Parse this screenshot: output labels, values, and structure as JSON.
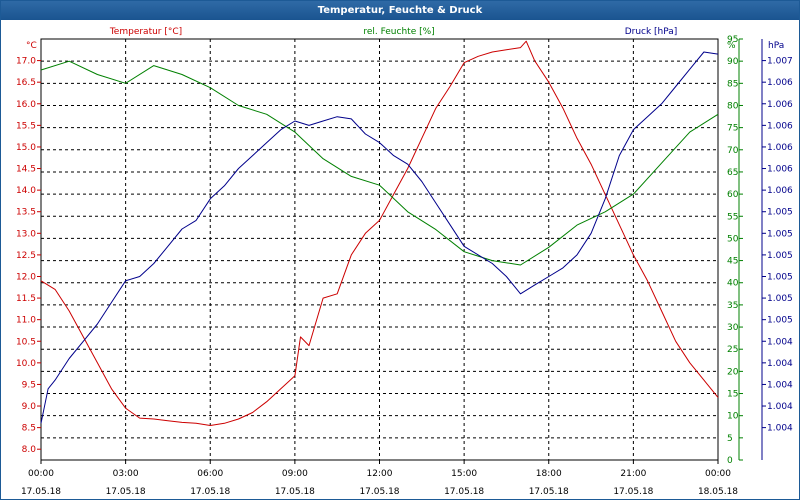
{
  "window": {
    "title": "Temperatur, Feuchte & Druck"
  },
  "chart_data": {
    "type": "line",
    "title": "Temperatur, Feuchte & Druck",
    "grid": true,
    "x_ticks": [
      {
        "time": "00:00",
        "date": "17.05.18"
      },
      {
        "time": "03:00",
        "date": "17.05.18"
      },
      {
        "time": "06:00",
        "date": "17.05.18"
      },
      {
        "time": "09:00",
        "date": "17.05.18"
      },
      {
        "time": "12:00",
        "date": "17.05.18"
      },
      {
        "time": "15:00",
        "date": "17.05.18"
      },
      {
        "time": "18:00",
        "date": "17.05.18"
      },
      {
        "time": "21:00",
        "date": "17.05.18"
      },
      {
        "time": "00:00",
        "date": "18.05.18"
      }
    ],
    "axes": {
      "temperature": {
        "unit_label": "°C",
        "color": "#cc0000",
        "ylim": [
          7.75,
          17.5
        ],
        "ticks": [
          "8.0",
          "8.5",
          "9.0",
          "9.5",
          "10.0",
          "10.5",
          "11.0",
          "11.5",
          "12.0",
          "12.5",
          "13.0",
          "13.5",
          "14.0",
          "14.5",
          "15.0",
          "15.5",
          "16.0",
          "16.5",
          "17.0"
        ]
      },
      "humidity": {
        "unit_label": "%",
        "color": "#008000",
        "ylim": [
          0,
          95
        ],
        "ticks": [
          "0",
          "5",
          "10",
          "15",
          "20",
          "25",
          "30",
          "35",
          "40",
          "45",
          "50",
          "55",
          "60",
          "65",
          "70",
          "75",
          "80",
          "85",
          "90",
          "95"
        ]
      },
      "pressure": {
        "unit_label": "hPa",
        "color": "#00008b",
        "ylim": [
          1003.6,
          1007.3
        ],
        "tick_positions": [
          8.5,
          9.0,
          9.5,
          10.0,
          10.5,
          11.0,
          11.5,
          12.0,
          12.5,
          13.0,
          13.5,
          14.0,
          14.5,
          15.0,
          15.5,
          16.0,
          16.5,
          17.0
        ],
        "ticks": [
          "1.004",
          "1.004",
          "1.004",
          "1.004",
          "1.004",
          "1.005",
          "1.005",
          "1.005",
          "1.005",
          "1.005",
          "1.005",
          "1.006",
          "1.006",
          "1.006",
          "1.006",
          "1.006",
          "1.006",
          "1.007"
        ]
      }
    },
    "series": [
      {
        "name": "Temperatur [°C]",
        "axis": "temperature",
        "color": "#cc0000",
        "x": [
          0,
          0.5,
          1,
          1.5,
          2,
          2.5,
          3,
          3.5,
          4,
          4.5,
          5,
          5.5,
          6,
          6.5,
          7,
          7.5,
          8,
          8.5,
          9,
          9.2,
          9.5,
          10,
          10.5,
          11,
          11.5,
          12,
          12.5,
          13,
          13.5,
          14,
          14.5,
          15,
          15.5,
          16,
          16.5,
          17,
          17.2,
          17.5,
          18,
          18.5,
          19,
          19.5,
          20,
          20.5,
          21,
          21.5,
          22,
          22.5,
          23,
          23.5,
          24
        ],
        "values": [
          11.9,
          11.7,
          11.2,
          10.6,
          10.0,
          9.4,
          8.95,
          8.72,
          8.7,
          8.66,
          8.62,
          8.6,
          8.55,
          8.6,
          8.7,
          8.85,
          9.1,
          9.4,
          9.7,
          10.6,
          10.4,
          11.5,
          11.6,
          12.5,
          13.0,
          13.3,
          13.9,
          14.5,
          15.2,
          15.9,
          16.4,
          16.95,
          17.1,
          17.2,
          17.25,
          17.3,
          17.45,
          17.0,
          16.5,
          15.9,
          15.2,
          14.6,
          13.9,
          13.2,
          12.5,
          11.9,
          11.2,
          10.5,
          10.0,
          9.6,
          9.2
        ]
      },
      {
        "name": "rel. Feuchte [%]",
        "axis": "humidity",
        "color": "#008000",
        "x": [
          0,
          1,
          2,
          3,
          4,
          5,
          6,
          7,
          8,
          9,
          10,
          11,
          12,
          13,
          14,
          15,
          16,
          17,
          18,
          19,
          20,
          21,
          22,
          23,
          24
        ],
        "values": [
          88,
          90,
          87,
          85,
          89,
          87,
          84,
          80,
          78,
          74,
          68,
          64,
          62,
          56,
          52,
          47,
          45,
          44,
          48,
          53,
          56,
          60,
          67,
          74,
          78
        ]
      },
      {
        "name": "Druck [hPa]",
        "axis": "pressure",
        "color": "#00008b",
        "x": [
          0,
          0.25,
          0.5,
          1,
          1.5,
          2,
          2.5,
          3,
          3.5,
          4,
          4.5,
          5,
          5.5,
          6,
          6.5,
          7,
          7.5,
          8,
          8.5,
          9,
          9.5,
          10,
          10.5,
          11,
          11.5,
          12,
          12.5,
          13,
          13.5,
          14,
          14.5,
          15,
          15.5,
          16,
          16.5,
          17,
          17.5,
          18,
          18.5,
          19,
          19.5,
          20,
          20.5,
          21,
          21.5,
          22,
          22.5,
          23,
          23.5,
          24
        ],
        "values": [
          8.6,
          9.4,
          9.6,
          10.1,
          10.5,
          10.9,
          11.4,
          11.9,
          12.0,
          12.3,
          12.7,
          13.1,
          13.3,
          13.8,
          14.1,
          14.5,
          14.8,
          15.1,
          15.4,
          15.6,
          15.5,
          15.6,
          15.7,
          15.65,
          15.3,
          15.1,
          14.8,
          14.6,
          14.2,
          13.7,
          13.2,
          12.7,
          12.5,
          12.3,
          12.0,
          11.6,
          11.8,
          12.0,
          12.2,
          12.5,
          13.0,
          13.8,
          14.8,
          15.4,
          15.7,
          16.0,
          16.4,
          16.8,
          17.2,
          17.15
        ]
      }
    ]
  }
}
